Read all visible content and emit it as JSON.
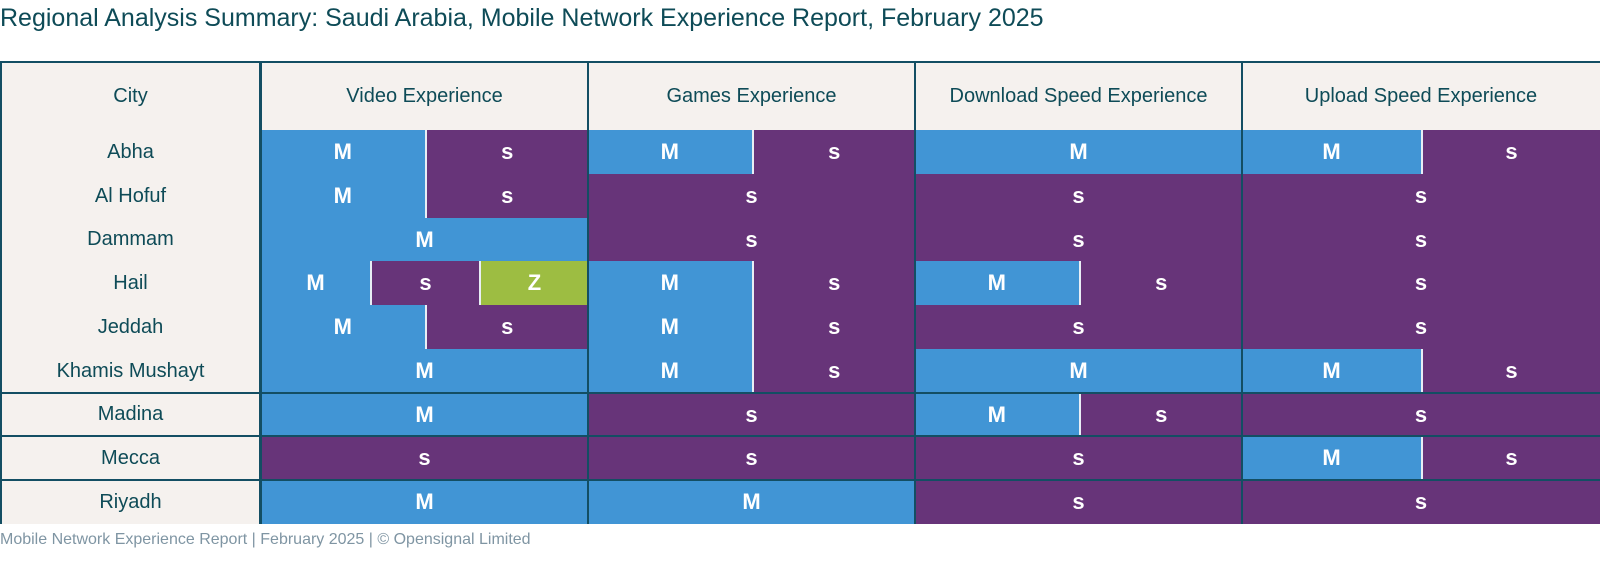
{
  "title": "Regional Analysis Summary: Saudi Arabia, Mobile Network Experience Report, February 2025",
  "colors": {
    "M": "#4195d5",
    "s": "#673479",
    "Z": "#9dbd42",
    "header_bg": "#f5f1ee",
    "border": "#134e63",
    "text": "#0e4b57"
  },
  "table": {
    "headers": [
      "City",
      "Video Experience",
      "Games Experience",
      "Download Speed Experience",
      "Upload Speed Experience"
    ],
    "rows": [
      {
        "city": "Abha",
        "cells": [
          [
            "M",
            "s"
          ],
          [
            "M",
            "s"
          ],
          [
            "M"
          ],
          [
            "M",
            "s"
          ]
        ]
      },
      {
        "city": "Al Hofuf",
        "cells": [
          [
            "M",
            "s"
          ],
          [
            "s"
          ],
          [
            "s"
          ],
          [
            "s"
          ]
        ]
      },
      {
        "city": "Dammam",
        "cells": [
          [
            "M"
          ],
          [
            "s"
          ],
          [
            "s"
          ],
          [
            "s"
          ]
        ]
      },
      {
        "city": "Hail",
        "cells": [
          [
            "M",
            "s",
            "Z"
          ],
          [
            "M",
            "s"
          ],
          [
            "M",
            "s"
          ],
          [
            "s"
          ]
        ]
      },
      {
        "city": "Jeddah",
        "cells": [
          [
            "M",
            "s"
          ],
          [
            "M",
            "s"
          ],
          [
            "s"
          ],
          [
            "s"
          ]
        ]
      },
      {
        "city": "Khamis Mushayt",
        "cells": [
          [
            "M"
          ],
          [
            "M",
            "s"
          ],
          [
            "M"
          ],
          [
            "M",
            "s"
          ]
        ]
      },
      {
        "city": "Madina",
        "cells": [
          [
            "M"
          ],
          [
            "s"
          ],
          [
            "M",
            "s"
          ],
          [
            "s"
          ]
        ]
      },
      {
        "city": "Mecca",
        "cells": [
          [
            "s"
          ],
          [
            "s"
          ],
          [
            "s"
          ],
          [
            "M",
            "s"
          ]
        ]
      },
      {
        "city": "Riyadh",
        "cells": [
          [
            "M"
          ],
          [
            "M"
          ],
          [
            "s"
          ],
          [
            "s"
          ]
        ]
      }
    ],
    "grouped_rows_without_separators": [
      "Abha",
      "Al Hofuf",
      "Dammam",
      "Hail",
      "Jeddah",
      "Khamis Mushayt"
    ]
  },
  "footer": "Mobile Network Experience Report | February 2025 | © Opensignal Limited"
}
